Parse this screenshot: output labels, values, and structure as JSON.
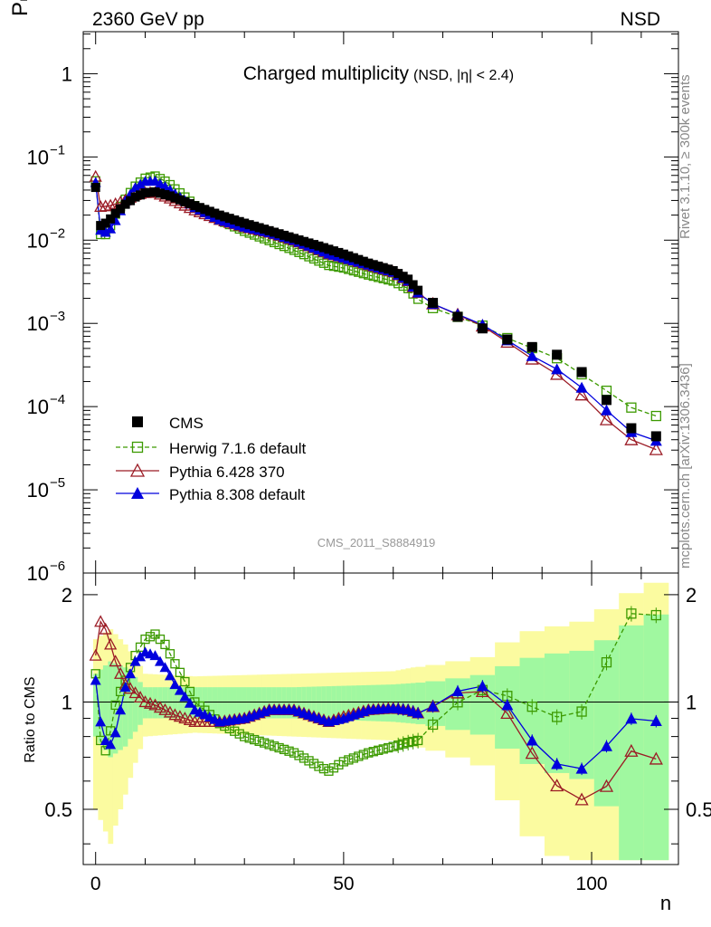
{
  "header": {
    "left": "2360 GeV pp",
    "right": "NSD"
  },
  "side_labels": {
    "rivet": "Rivet 3.1.10, ≥ 300k events",
    "mcplots": "mcplots.cern.ch [arXiv:1306.3436]"
  },
  "chart_data": {
    "type": "scatter",
    "title": "Charged multiplicity",
    "subtitle": "(NSD, |η| < 2.4)",
    "analysis_id": "CMS_2011_S8884919",
    "xlabel": "n",
    "ylabel": "Pₙ",
    "ratio_ylabel": "Ratio to CMS",
    "xlim": [
      -2.5,
      117.5
    ],
    "ylim": [
      1e-06,
      3.2
    ],
    "yscale": "log",
    "ratio_ylim": [
      0.35,
      2.3
    ],
    "x_ticks": [
      0,
      50,
      100
    ],
    "x_tick_labels": [
      "0",
      "50",
      "100"
    ],
    "y_ticks": [
      {
        "v": 1,
        "base": "1",
        "exp": ""
      },
      {
        "v": 0.1,
        "base": "10",
        "exp": "−1"
      },
      {
        "v": 0.01,
        "base": "10",
        "exp": "−2"
      },
      {
        "v": 0.001,
        "base": "10",
        "exp": "−3"
      },
      {
        "v": 0.0001,
        "base": "10",
        "exp": "−4"
      },
      {
        "v": 1e-05,
        "base": "10",
        "exp": "−5"
      },
      {
        "v": 1e-06,
        "base": "10",
        "exp": "−6"
      }
    ],
    "ratio_ticks": [
      {
        "v": 0.5,
        "label": "0.5"
      },
      {
        "v": 1,
        "label": "1"
      },
      {
        "v": 2,
        "label": "2"
      }
    ],
    "legend_position": "lower-left",
    "series": [
      {
        "name": "CMS",
        "color": "#000000",
        "marker": "filled-square",
        "line": "none"
      },
      {
        "name": "Herwig 7.1.6 default",
        "color": "#3c9a00",
        "marker": "open-square",
        "line": "dashed"
      },
      {
        "name": "Pythia 6.428 370",
        "color": "#9b1b25",
        "marker": "open-triangle",
        "line": "solid"
      },
      {
        "name": "Pythia 8.308 default",
        "color": "#0000dd",
        "marker": "filled-triangle",
        "line": "solid"
      }
    ],
    "cms_anchors": {
      "n": [
        0,
        1,
        2,
        3,
        4,
        6,
        8,
        10,
        12,
        15,
        20,
        25,
        30,
        35,
        40,
        45,
        50,
        55,
        60,
        63,
        65,
        70,
        73,
        78,
        83,
        88,
        93,
        98,
        103,
        108,
        113
      ],
      "p": [
        0.043,
        0.015,
        0.016,
        0.018,
        0.021,
        0.027,
        0.033,
        0.037,
        0.038,
        0.034,
        0.026,
        0.02,
        0.016,
        0.013,
        0.0105,
        0.0085,
        0.0068,
        0.0053,
        0.0043,
        0.0034,
        0.0025,
        0.0014,
        0.0012,
        0.00087,
        0.00064,
        0.00052,
        0.00042,
        0.00026,
        0.00012,
        5.5e-05,
        4.4e-05
      ]
    },
    "ratio_anchors": {
      "n": [
        0,
        1,
        2,
        3,
        4,
        5,
        6,
        8,
        10,
        12,
        14,
        16,
        20,
        25,
        30,
        35,
        40,
        45,
        47,
        50,
        55,
        60,
        63,
        65,
        70,
        75,
        80,
        85,
        90,
        95,
        100,
        105,
        110,
        115
      ],
      "herwig": [
        1.2,
        0.78,
        0.73,
        0.83,
        0.98,
        1.07,
        1.15,
        1.35,
        1.5,
        1.55,
        1.45,
        1.28,
        1.0,
        0.87,
        0.8,
        0.76,
        0.72,
        0.66,
        0.64,
        0.68,
        0.72,
        0.75,
        0.77,
        0.78,
        0.92,
        1.05,
        1.1,
        1.0,
        0.95,
        0.88,
        0.98,
        1.5,
        1.95,
        1.62
      ],
      "pythia6": [
        1.35,
        1.68,
        1.6,
        1.45,
        1.3,
        1.2,
        1.12,
        1.06,
        1.0,
        0.98,
        0.95,
        0.92,
        0.88,
        0.88,
        0.9,
        0.95,
        0.95,
        0.9,
        0.88,
        0.91,
        0.95,
        0.96,
        0.95,
        0.93,
        1.0,
        1.1,
        1.05,
        0.85,
        0.63,
        0.55,
        0.52,
        0.62,
        0.8,
        0.62
      ],
      "pythia8": [
        1.15,
        0.88,
        0.78,
        0.76,
        0.82,
        0.95,
        1.1,
        1.3,
        1.38,
        1.35,
        1.25,
        1.12,
        0.95,
        0.88,
        0.9,
        0.95,
        0.95,
        0.9,
        0.88,
        0.9,
        0.95,
        0.96,
        0.95,
        0.93,
        1.0,
        1.12,
        1.1,
        0.9,
        0.7,
        0.65,
        0.65,
        0.82,
        0.95,
        0.84
      ]
    },
    "uncertainty_band_anchors": {
      "n": [
        0,
        3,
        6,
        10,
        20,
        40,
        60,
        64,
        70,
        80,
        85,
        90,
        95,
        100,
        105,
        110,
        115
      ],
      "green_half": [
        0.2,
        0.3,
        0.25,
        0.1,
        0.1,
        0.1,
        0.12,
        0.13,
        0.15,
        0.2,
        0.3,
        0.35,
        0.38,
        0.4,
        0.55,
        0.7,
        0.8
      ],
      "yellow_half": [
        0.5,
        0.6,
        0.45,
        0.2,
        0.18,
        0.2,
        0.22,
        0.25,
        0.28,
        0.35,
        0.55,
        0.6,
        0.65,
        0.7,
        0.9,
        1.1,
        1.2
      ]
    }
  }
}
